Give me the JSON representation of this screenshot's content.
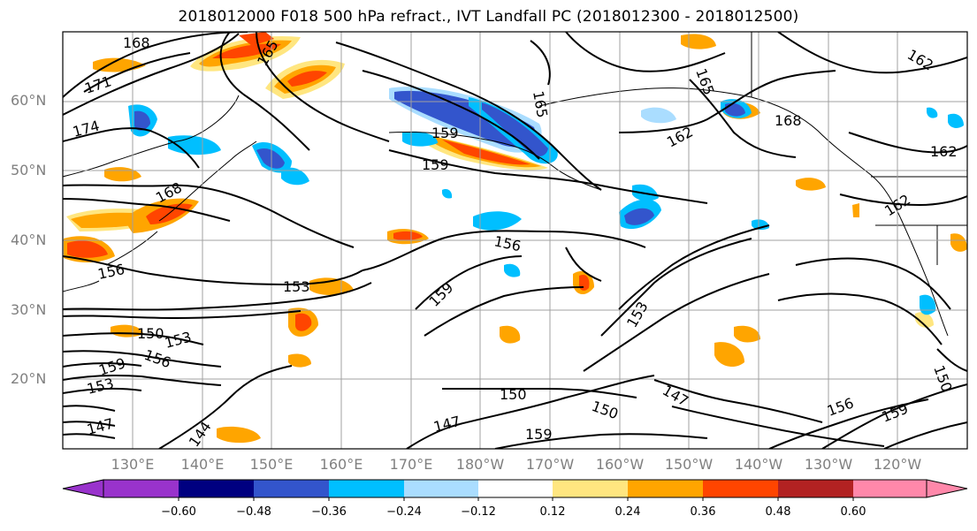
{
  "title": "2018012000 F018 500 hPa refract., IVT Landfall PC (2018012300 - 2018012500)",
  "lat_labels": [
    "60°N",
    "50°N",
    "40°N",
    "30°N",
    "20°N"
  ],
  "lon_labels": [
    "130°E",
    "140°E",
    "150°E",
    "160°E",
    "170°E",
    "180°W",
    "170°W",
    "160°W",
    "150°W",
    "140°W",
    "130°W",
    "120°W"
  ],
  "colorbar": {
    "labels": [
      "−0.60",
      "−0.48",
      "−0.36",
      "−0.24",
      "−0.12",
      "0.12",
      "0.24",
      "0.36",
      "0.48",
      "0.60"
    ],
    "colors": [
      "#9933cc",
      "#000080",
      "#3355cc",
      "#00bfff",
      "#aaddff",
      "#ffffff",
      "#ffe680",
      "#ffa500",
      "#ff4500",
      "#b22222",
      "#ff88aa"
    ]
  },
  "contour_labels": [
    "168",
    "171",
    "174",
    "165",
    "165",
    "159",
    "159",
    "162",
    "165",
    "162",
    "168",
    "162",
    "162",
    "168",
    "156",
    "156",
    "153",
    "159",
    "153",
    "150",
    "153",
    "156",
    "159",
    "153",
    "150",
    "147",
    "147",
    "144",
    "147",
    "150",
    "159",
    "159",
    "156",
    "150"
  ]
}
